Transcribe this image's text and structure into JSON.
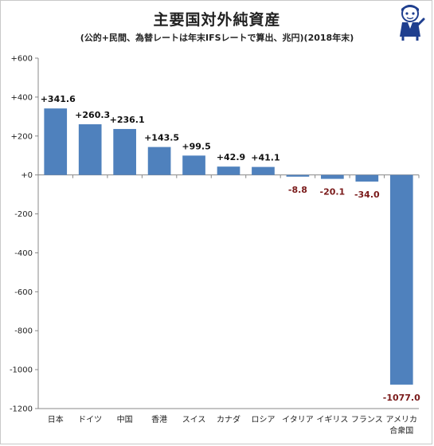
{
  "chart_data": {
    "type": "bar",
    "title": "主要国対外純資産",
    "subtitle": "(公的+民間、為替レートは年末IFSレートで算出、兆円)(2018年末)",
    "categories": [
      [
        "日本"
      ],
      [
        "ドイツ"
      ],
      [
        "中国"
      ],
      [
        "香港"
      ],
      [
        "スイス"
      ],
      [
        "カナダ"
      ],
      [
        "ロシア"
      ],
      [
        "イタリア"
      ],
      [
        "イギリス"
      ],
      [
        "フランス"
      ],
      [
        "アメリカ",
        "合衆国"
      ]
    ],
    "values": [
      341.6,
      260.3,
      236.1,
      143.5,
      99.5,
      42.9,
      41.1,
      -8.8,
      -20.1,
      -34.0,
      -1077.0
    ],
    "value_labels": [
      "+341.6",
      "+260.3",
      "+236.1",
      "+143.5",
      "+99.5",
      "+42.9",
      "+41.1",
      "-8.8",
      "-20.1",
      "-34.0",
      "-1077.0"
    ],
    "ylim": [
      -1200,
      600
    ],
    "yticks": [
      600,
      400,
      200,
      0,
      -200,
      -400,
      -600,
      -800,
      -1000,
      -1200
    ],
    "ytick_labels": [
      "+600",
      "+400",
      "+200",
      "+0",
      "-200",
      "-400",
      "-600",
      "-800",
      "-1000",
      "-1200"
    ],
    "grid": false,
    "colors": {
      "bar": "#4f81bd",
      "positive_label": "#111111",
      "negative_label": "#7a1a1a"
    }
  },
  "mascot": {
    "icon": "mascot-character-icon"
  }
}
